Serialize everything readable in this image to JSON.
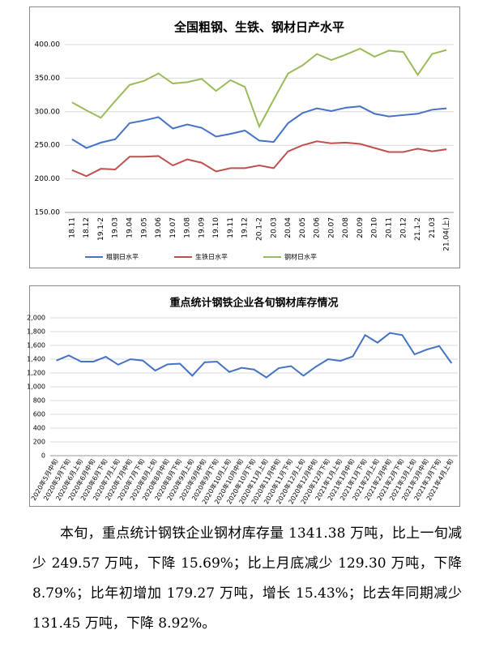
{
  "chart_data": [
    {
      "type": "line",
      "title": "全国粗钢、生铁、钢材日产水平",
      "categories": [
        "18.11",
        "18.12",
        "19.1-2",
        "19.03",
        "19.04",
        "19.05",
        "19.06",
        "19.07",
        "19.08",
        "19.09",
        "19.10",
        "19.11",
        "19.12",
        "20.1-2",
        "20.03",
        "20.04",
        "20.05",
        "20.06",
        "20.07",
        "20.08",
        "20.09",
        "20.10",
        "20.11",
        "20.12",
        "21.1-2",
        "21.03",
        "21.04(上)"
      ],
      "series": [
        {
          "name": "粗钢日水平",
          "color": "#4472c4",
          "values": [
            259,
            246,
            254,
            259,
            283,
            287,
            292,
            275,
            281,
            276,
            263,
            267,
            272,
            257,
            255,
            283,
            298,
            305,
            301,
            306,
            308,
            297,
            293,
            295,
            297,
            303,
            305
          ]
        },
        {
          "name": "生铁日水平",
          "color": "#c0504d",
          "values": [
            213,
            204,
            215,
            214,
            233,
            233,
            234,
            220,
            229,
            224,
            211,
            216,
            216,
            220,
            216,
            241,
            250,
            256,
            253,
            254,
            252,
            246,
            240,
            240,
            245,
            241,
            244
          ]
        },
        {
          "name": "钢材日水平",
          "color": "#9bbb59",
          "values": [
            314,
            302,
            291,
            316,
            340,
            346,
            357,
            342,
            344,
            349,
            331,
            347,
            337,
            278,
            318,
            357,
            369,
            386,
            377,
            385,
            394,
            382,
            391,
            389,
            355,
            386,
            392
          ]
        }
      ],
      "ylim": [
        150,
        400
      ],
      "yticks": [
        {
          "value": 150,
          "label": "150.00"
        },
        {
          "value": 200,
          "label": "200.00"
        },
        {
          "value": 250,
          "label": "250.00"
        },
        {
          "value": 300,
          "label": "300.00"
        },
        {
          "value": 350,
          "label": "350.00"
        },
        {
          "value": 400,
          "label": "400.00"
        }
      ],
      "grid": true,
      "legend": "bottom"
    },
    {
      "type": "line",
      "title": "重点统计钢铁企业各旬钢材库存情况",
      "categories": [
        "2020年5月中旬",
        "2020年5月下旬",
        "2020年6月上旬",
        "2020年6月中旬",
        "2020年6月下旬",
        "2020年7月上旬",
        "2020年7月中旬",
        "2020年7月下旬",
        "2020年8月上旬",
        "2020年8月中旬",
        "2020年8月下旬",
        "2020年9月上旬",
        "2020年9月中旬",
        "2020年9月下旬",
        "2020年10月上旬",
        "2020年10月中旬",
        "2020年10月下旬",
        "2020年11月上旬",
        "2020年11月中旬",
        "2020年11月下旬",
        "2020年12月上旬",
        "2020年12月中旬",
        "2020年12月下旬",
        "2021年1月上旬",
        "2021年1月中旬",
        "2021年1月下旬",
        "2021年2月上旬",
        "2021年2月中旬",
        "2021年2月下旬",
        "2021年3月上旬",
        "2021年3月中旬",
        "2021年3月下旬",
        "2021年4月上旬"
      ],
      "values": [
        1380,
        1455,
        1365,
        1365,
        1435,
        1320,
        1400,
        1380,
        1235,
        1325,
        1335,
        1160,
        1355,
        1365,
        1215,
        1275,
        1250,
        1135,
        1270,
        1300,
        1160,
        1290,
        1400,
        1375,
        1440,
        1750,
        1640,
        1780,
        1750,
        1470,
        1540,
        1590.95,
        1341.38
      ],
      "color": "#4472c4",
      "ylim": [
        0,
        2000
      ],
      "yticks": [
        0,
        200,
        400,
        600,
        800,
        {
          "value": 1000,
          "label": "1,000"
        },
        {
          "value": 1200,
          "label": "1,200"
        },
        {
          "value": 1400,
          "label": "1,400"
        },
        {
          "value": 1600,
          "label": "1,600"
        },
        {
          "value": 1800,
          "label": "1,800"
        },
        {
          "value": 2000,
          "label": "2,000"
        }
      ],
      "grid": true
    }
  ],
  "paragraph": "本旬，重点统计钢铁企业钢材库存量 1341.38 万吨，比上一旬减少 249.57 万吨，下降 15.69%；比上月底减少 129.30 万吨，下降 8.79%；比年初增加 179.27 万吨，增长 15.43%；比去年同期减少 131.45 万吨，下降 8.92%。"
}
